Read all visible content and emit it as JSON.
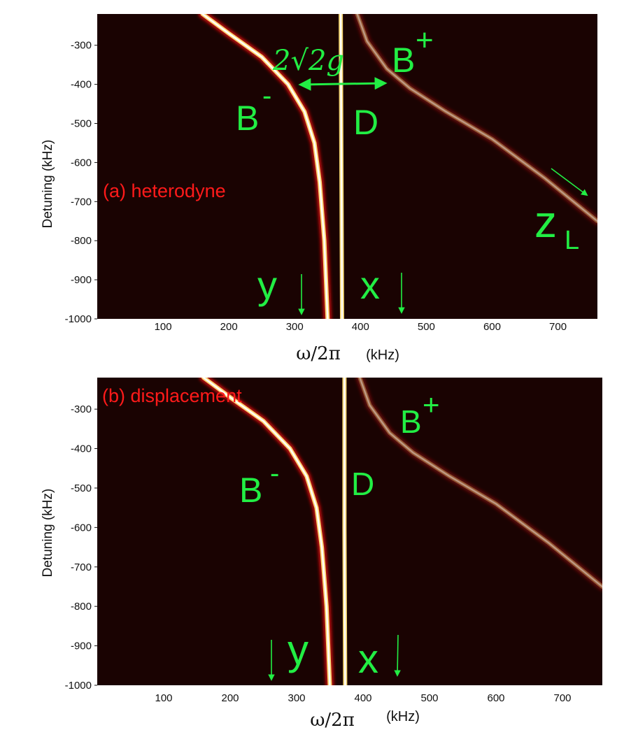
{
  "chart_data": [
    {
      "type": "heatmap",
      "panel_label": "(a) heterodyne",
      "xlabel_symbol": "ω/2π",
      "xlabel_unit": "(kHz)",
      "ylabel": "Detuning (kHz)",
      "xlim": [
        0,
        760
      ],
      "ylim": [
        -1000,
        -220
      ],
      "xticks": [
        "100",
        "200",
        "300",
        "400",
        "500",
        "600",
        "700"
      ],
      "yticks": [
        "-300",
        "-400",
        "-500",
        "-600",
        "-700",
        "-800",
        "-900",
        "-1000"
      ],
      "branches": {
        "B_minus": [
          [
            160,
            -220
          ],
          [
            200,
            -270
          ],
          [
            250,
            -330
          ],
          [
            290,
            -400
          ],
          [
            315,
            -470
          ],
          [
            330,
            -550
          ],
          [
            338,
            -650
          ],
          [
            345,
            -800
          ],
          [
            350,
            -1000
          ]
        ],
        "D": [
          [
            370,
            -220
          ],
          [
            371,
            -600
          ],
          [
            372,
            -1000
          ]
        ],
        "B_plus": [
          [
            395,
            -220
          ],
          [
            410,
            -290
          ],
          [
            440,
            -360
          ],
          [
            475,
            -410
          ],
          [
            530,
            -470
          ],
          [
            600,
            -540
          ],
          [
            680,
            -640
          ],
          [
            760,
            -750
          ]
        ]
      },
      "annotations": {
        "b_minus": "B",
        "b_minus_sup": "-",
        "b_plus": "B",
        "b_plus_sup": "+",
        "d": "D",
        "splitting": "2√2g",
        "y": "y",
        "x": "x",
        "zl": "z",
        "zl_sub": "L"
      },
      "colors": {
        "background": "#1a0302",
        "line_core": "#ffffff",
        "line_mid": "#ffe27a",
        "line_outer": "#d21010",
        "annotation": "#22ee44",
        "panel_label": "#ff1a1a"
      }
    },
    {
      "type": "heatmap",
      "panel_label": "(b) displacement",
      "xlabel_symbol": "ω/2π",
      "xlabel_unit": "(kHz)",
      "ylabel": "Detuning (kHz)",
      "xlim": [
        0,
        760
      ],
      "ylim": [
        -1000,
        -220
      ],
      "xticks": [
        "100",
        "200",
        "300",
        "400",
        "500",
        "600",
        "700"
      ],
      "yticks": [
        "-300",
        "-400",
        "-500",
        "-600",
        "-700",
        "-800",
        "-900",
        "-1000"
      ],
      "branches": {
        "B_minus": [
          [
            160,
            -220
          ],
          [
            200,
            -270
          ],
          [
            250,
            -330
          ],
          [
            290,
            -400
          ],
          [
            315,
            -470
          ],
          [
            330,
            -550
          ],
          [
            338,
            -650
          ],
          [
            345,
            -800
          ],
          [
            350,
            -1000
          ]
        ],
        "D": [
          [
            372,
            -220
          ],
          [
            372,
            -600
          ],
          [
            373,
            -1000
          ]
        ],
        "B_plus": [
          [
            395,
            -220
          ],
          [
            410,
            -290
          ],
          [
            440,
            -360
          ],
          [
            475,
            -410
          ],
          [
            530,
            -470
          ],
          [
            600,
            -540
          ],
          [
            680,
            -640
          ],
          [
            760,
            -750
          ]
        ]
      },
      "annotations": {
        "b_minus": "B",
        "b_minus_sup": "-",
        "b_plus": "B",
        "b_plus_sup": "+",
        "d": "D",
        "y": "y",
        "x": "x"
      },
      "colors": {
        "background": "#1a0302",
        "line_core": "#ffffff",
        "line_mid": "#ffe27a",
        "line_outer": "#d21010",
        "annotation": "#22ee44",
        "panel_label": "#ff1a1a"
      }
    }
  ]
}
